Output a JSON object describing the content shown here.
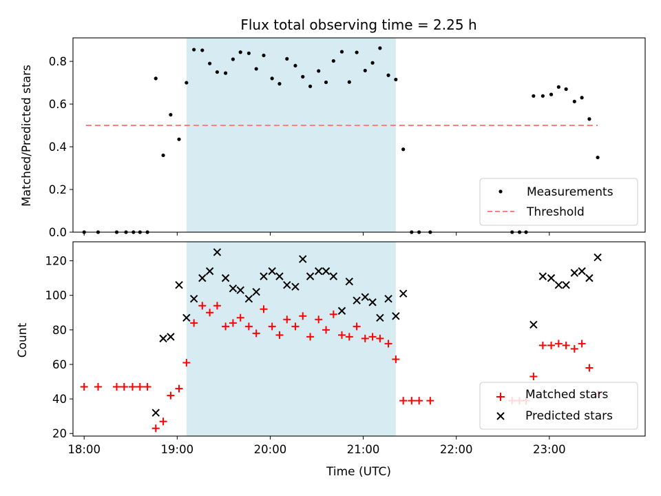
{
  "chart_data": [
    {
      "type": "scatter",
      "title": "Flux total observing time = 2.25 h",
      "xlabel": "",
      "ylabel": "Matched/Predicted stars",
      "xlim": [
        -0.12,
        6.03
      ],
      "ylim": [
        0,
        0.91
      ],
      "yticks": [
        "0.0",
        "0.2",
        "0.4",
        "0.6",
        "0.8"
      ],
      "grid": false,
      "legend_position": "bottom-right",
      "shaded_span": {
        "x0": 1.1,
        "x1": 3.35,
        "color": "#add8e6"
      },
      "series": [
        {
          "name": "Measurements",
          "marker": "dot",
          "color": "#000000",
          "x": [
            0.0,
            0.15,
            0.35,
            0.45,
            0.53,
            0.6,
            0.68,
            0.77,
            0.85,
            0.93,
            1.02,
            1.1,
            1.18,
            1.27,
            1.35,
            1.43,
            1.52,
            1.6,
            1.68,
            1.77,
            1.85,
            1.93,
            2.02,
            2.1,
            2.18,
            2.27,
            2.35,
            2.43,
            2.52,
            2.6,
            2.68,
            2.77,
            2.85,
            2.93,
            3.02,
            3.1,
            3.18,
            3.27,
            3.35,
            3.43,
            3.52,
            3.6,
            3.72,
            4.6,
            4.68,
            4.75,
            4.83,
            4.93,
            5.02,
            5.1,
            5.18,
            5.27,
            5.35,
            5.43,
            5.52
          ],
          "y": [
            0.0,
            0.0,
            0.0,
            0.0,
            0.0,
            0.0,
            0.0,
            0.72,
            0.36,
            0.55,
            0.435,
            0.7,
            0.855,
            0.852,
            0.79,
            0.75,
            0.745,
            0.81,
            0.843,
            0.838,
            0.765,
            0.828,
            0.72,
            0.695,
            0.812,
            0.78,
            0.728,
            0.683,
            0.755,
            0.702,
            0.802,
            0.845,
            0.703,
            0.842,
            0.757,
            0.793,
            0.862,
            0.735,
            0.715,
            0.388,
            0.0,
            0.0,
            0.0,
            0.0,
            0.0,
            0.0,
            0.638,
            0.638,
            0.645,
            0.68,
            0.67,
            0.612,
            0.63,
            0.53,
            0.35
          ]
        },
        {
          "name": "Threshold",
          "marker": "dashed-line",
          "color": "#ff7f7f",
          "x": [
            0.02,
            5.52
          ],
          "y": [
            0.5,
            0.5
          ]
        }
      ]
    },
    {
      "type": "scatter",
      "title": "",
      "xlabel": "Time (UTC)",
      "ylabel": "Count",
      "xlim": [
        -0.12,
        6.03
      ],
      "ylim": [
        18.5,
        131
      ],
      "yticks": [
        "20",
        "40",
        "60",
        "80",
        "100",
        "120"
      ],
      "xticks": [
        "18:00",
        "19:00",
        "20:00",
        "21:00",
        "22:00",
        "23:00"
      ],
      "grid": false,
      "legend_position": "bottom-right",
      "shaded_span": {
        "x0": 1.1,
        "x1": 3.35,
        "color": "#add8e6"
      },
      "series": [
        {
          "name": "Matched stars",
          "marker": "plus",
          "color": "#ff0000",
          "x": [
            0.0,
            0.15,
            0.35,
            0.43,
            0.52,
            0.6,
            0.68,
            0.77,
            0.85,
            0.93,
            1.02,
            1.1,
            1.18,
            1.27,
            1.35,
            1.43,
            1.52,
            1.6,
            1.68,
            1.77,
            1.85,
            1.93,
            2.02,
            2.1,
            2.18,
            2.27,
            2.35,
            2.43,
            2.52,
            2.6,
            2.68,
            2.77,
            2.85,
            2.93,
            3.02,
            3.1,
            3.18,
            3.27,
            3.35,
            3.43,
            3.52,
            3.6,
            3.72,
            4.6,
            4.68,
            4.75,
            4.83,
            4.93,
            5.02,
            5.1,
            5.18,
            5.27,
            5.35,
            5.43,
            5.52
          ],
          "y": [
            47,
            47,
            47,
            47,
            47,
            47,
            47,
            23,
            27,
            42,
            46,
            61,
            84,
            94,
            90,
            94,
            82,
            84,
            87,
            82,
            78,
            92,
            82,
            77,
            86,
            82,
            88,
            76,
            86,
            80,
            89,
            77,
            76,
            82,
            75,
            76,
            75,
            72,
            63,
            39,
            39,
            39,
            39,
            39,
            39,
            39,
            53,
            71,
            71,
            72,
            71,
            69,
            72,
            58,
            43
          ]
        },
        {
          "name": "Predicted stars",
          "marker": "x",
          "color": "#000000",
          "x": [
            0.77,
            0.85,
            0.93,
            1.02,
            1.1,
            1.18,
            1.27,
            1.35,
            1.43,
            1.52,
            1.6,
            1.68,
            1.77,
            1.85,
            1.93,
            2.02,
            2.1,
            2.18,
            2.27,
            2.35,
            2.43,
            2.52,
            2.6,
            2.68,
            2.77,
            2.85,
            2.93,
            3.02,
            3.1,
            3.18,
            3.27,
            3.35,
            3.43,
            4.83,
            4.93,
            5.02,
            5.1,
            5.18,
            5.27,
            5.35,
            5.43,
            5.52
          ],
          "y": [
            32,
            75,
            76,
            106,
            87,
            98,
            110,
            114,
            125,
            110,
            104,
            103,
            98,
            102,
            111,
            114,
            111,
            106,
            105,
            121,
            111,
            114,
            114,
            111,
            91,
            108,
            97,
            99,
            96,
            87,
            98,
            88,
            101,
            83,
            111,
            110,
            106,
            106,
            113,
            114,
            110,
            122
          ]
        }
      ]
    }
  ]
}
